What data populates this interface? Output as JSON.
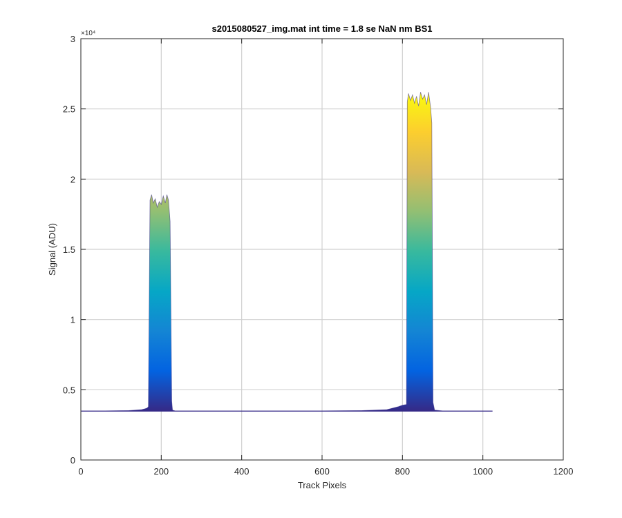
{
  "chart_data": {
    "type": "area",
    "title": "s2015080527_img.mat int time = 1.8 se  NaN nm BS1",
    "xlabel": "Track Pixels",
    "ylabel": "Signal (ADU)",
    "xlim": [
      0,
      1200
    ],
    "ylim": [
      0,
      30000
    ],
    "y_exponent_label": "×10⁴",
    "xticks": [
      0,
      200,
      400,
      600,
      800,
      1000,
      1200
    ],
    "xtick_labels": [
      "0",
      "200",
      "400",
      "600",
      "800",
      "1000",
      "1200"
    ],
    "yticks": [
      0,
      5000,
      10000,
      15000,
      20000,
      25000,
      30000
    ],
    "ytick_labels": [
      "0",
      "0.5",
      "1",
      "1.5",
      "2",
      "2.5",
      "3"
    ],
    "grid": true,
    "colormap": "parula",
    "colormap_stops": [
      "#352a87",
      "#0363e1",
      "#1485d4",
      "#06a7c6",
      "#38b99e",
      "#92bf73",
      "#d9ba56",
      "#fcce2e",
      "#f9fb0e"
    ],
    "series": [
      {
        "x": [
          1,
          60,
          120,
          150,
          160,
          165,
          168,
          172,
          176,
          180,
          185,
          190,
          195,
          200,
          205,
          210,
          214,
          218,
          222,
          226,
          228,
          235,
          300,
          400,
          500,
          600,
          700,
          760,
          790,
          800,
          810,
          812,
          815,
          820,
          825,
          830,
          835,
          840,
          845,
          850,
          855,
          860,
          865,
          870,
          873,
          876,
          880,
          900,
          950,
          1024
        ],
        "y": [
          3500,
          3500,
          3520,
          3580,
          3650,
          3700,
          3800,
          18500,
          18900,
          18300,
          18600,
          18000,
          18400,
          18200,
          18800,
          18300,
          18900,
          18500,
          17000,
          4200,
          3550,
          3500,
          3500,
          3500,
          3500,
          3500,
          3520,
          3580,
          3800,
          3900,
          3950,
          25500,
          26100,
          25600,
          26000,
          25400,
          25900,
          25200,
          26200,
          25700,
          26000,
          25300,
          26200,
          25100,
          24000,
          4100,
          3550,
          3500,
          3500,
          3500
        ]
      }
    ]
  }
}
